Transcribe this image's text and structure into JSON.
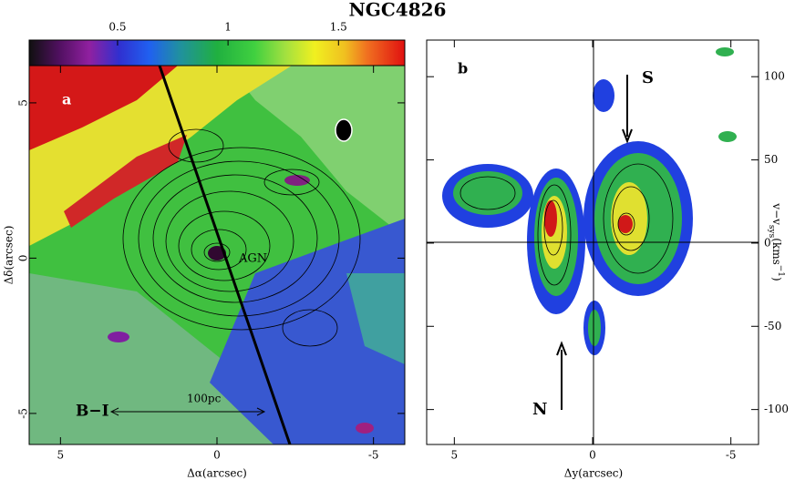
{
  "title": "NGC4826",
  "panels": [
    {
      "label": "a",
      "colorbar": {
        "lim": [
          0.1,
          1.8
        ],
        "ticks": [
          0.5,
          1,
          1.5
        ]
      },
      "xlabel": "Δα(arcsec)",
      "ylabel": "Δδ(arcsec)",
      "xlim": [
        6,
        -6
      ],
      "ylim": [
        -6,
        6.2
      ],
      "xticks": [
        5,
        0,
        -5
      ],
      "yticks": [
        -5,
        0,
        5
      ],
      "annotations": [
        "AGN",
        "100pc",
        "B−I"
      ]
    },
    {
      "label": "b",
      "xlabel": "Δy(arcsec)",
      "ylabel": {
        "main": "v−v",
        "sub": "sys",
        "unit": "(kms",
        "sup": "−1",
        "close": ")"
      },
      "xlim": [
        6,
        -6
      ],
      "xticks": [
        5,
        0,
        -5
      ],
      "y2lim": [
        -121,
        122
      ],
      "y2ticks": [
        -100,
        -50,
        0,
        50,
        100
      ],
      "annotations": [
        "S",
        "N"
      ]
    }
  ]
}
